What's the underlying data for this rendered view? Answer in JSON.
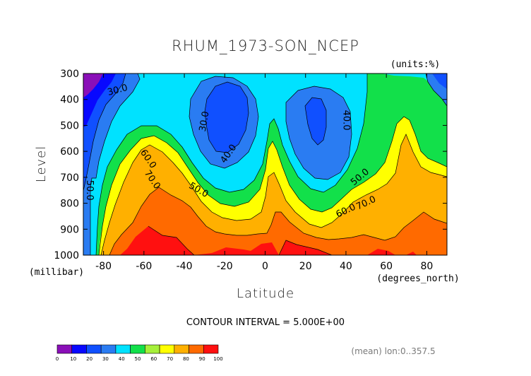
{
  "chart_data": {
    "type": "contour",
    "title": "RHUM_1973-SON_NCEP",
    "units_label": "(units:%)",
    "xlabel": "Latitude",
    "ylabel": "Level",
    "x_unit_label": "(degrees_north)",
    "y_unit_label": "(millibar)",
    "xlim": [
      -90,
      90
    ],
    "ylim": [
      1000,
      300
    ],
    "x_ticks": [
      -80,
      -60,
      -40,
      -20,
      0,
      20,
      40,
      60,
      80
    ],
    "y_ticks": [
      300,
      400,
      500,
      600,
      700,
      800,
      900,
      1000
    ],
    "footer": "CONTOUR INTERVAL = 5.000E+00",
    "note": "(mean) lon:0..357.5",
    "colorbar": {
      "levels": [
        0,
        10,
        20,
        30,
        40,
        50,
        60,
        70,
        80,
        90,
        100
      ],
      "colors": [
        "#8a0fb8",
        "#0808ff",
        "#1050ff",
        "#2a7cf2",
        "#00e2ff",
        "#12e04a",
        "#a6f03a",
        "#ffff00",
        "#ffb000",
        "#ff6a00",
        "#ff1010"
      ]
    },
    "contour_labels": [
      {
        "text": "30.0",
        "x": -73,
        "y": 365,
        "angle": -15
      },
      {
        "text": "30.0",
        "x": -30,
        "y": 485,
        "angle": -80
      },
      {
        "text": "40.0",
        "x": -18,
        "y": 610,
        "angle": -55
      },
      {
        "text": "40.0",
        "x": 40,
        "y": 480,
        "angle": 90
      },
      {
        "text": "50.0",
        "x": -33,
        "y": 750,
        "angle": 30
      },
      {
        "text": "50.0",
        "x": 47,
        "y": 700,
        "angle": -40
      },
      {
        "text": "60.0",
        "x": -58,
        "y": 630,
        "angle": 55
      },
      {
        "text": "60.0",
        "x": 40,
        "y": 830,
        "angle": -25
      },
      {
        "text": "70.0",
        "x": -56,
        "y": 710,
        "angle": 55
      },
      {
        "text": "70.0",
        "x": 50,
        "y": 800,
        "angle": -25
      },
      {
        "text": "50.0",
        "x": -87,
        "y": 750,
        "angle": 90
      }
    ]
  }
}
